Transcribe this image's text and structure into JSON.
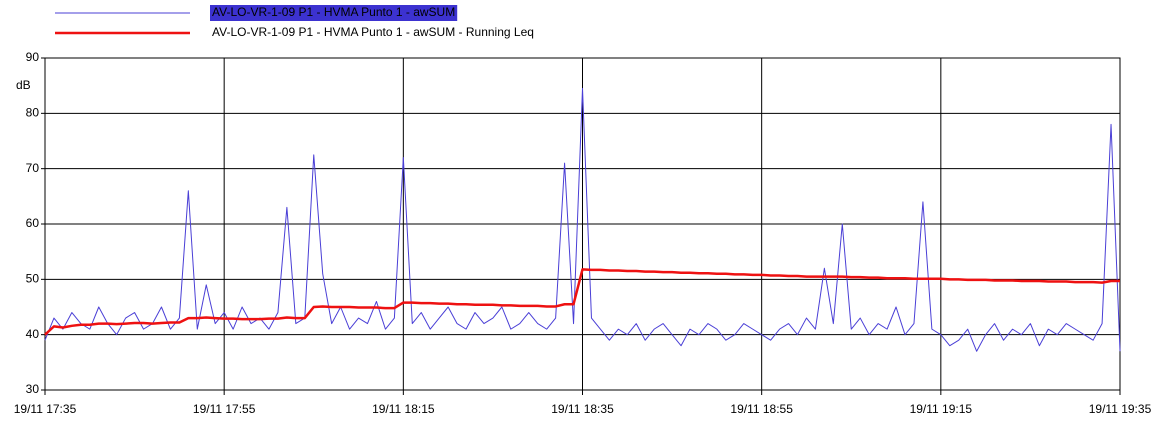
{
  "chart_data": {
    "type": "line",
    "ylabel": "dB",
    "x": [
      "19/11 17:35",
      "19/11 17:36",
      "19/11 17:37",
      "19/11 17:38",
      "19/11 17:39",
      "19/11 17:40",
      "19/11 17:41",
      "19/11 17:42",
      "19/11 17:43",
      "19/11 17:44",
      "19/11 17:45",
      "19/11 17:46",
      "19/11 17:47",
      "19/11 17:48",
      "19/11 17:49",
      "19/11 17:50",
      "19/11 17:51",
      "19/11 17:52",
      "19/11 17:53",
      "19/11 17:54",
      "19/11 17:55",
      "19/11 17:56",
      "19/11 17:57",
      "19/11 17:58",
      "19/11 17:59",
      "19/11 18:00",
      "19/11 18:01",
      "19/11 18:02",
      "19/11 18:03",
      "19/11 18:04",
      "19/11 18:05",
      "19/11 18:06",
      "19/11 18:07",
      "19/11 18:08",
      "19/11 18:09",
      "19/11 18:10",
      "19/11 18:11",
      "19/11 18:12",
      "19/11 18:13",
      "19/11 18:14",
      "19/11 18:15",
      "19/11 18:16",
      "19/11 18:17",
      "19/11 18:18",
      "19/11 18:19",
      "19/11 18:20",
      "19/11 18:21",
      "19/11 18:22",
      "19/11 18:23",
      "19/11 18:24",
      "19/11 18:25",
      "19/11 18:26",
      "19/11 18:27",
      "19/11 18:28",
      "19/11 18:29",
      "19/11 18:30",
      "19/11 18:31",
      "19/11 18:32",
      "19/11 18:33",
      "19/11 18:34",
      "19/11 18:35",
      "19/11 18:36",
      "19/11 18:37",
      "19/11 18:38",
      "19/11 18:39",
      "19/11 18:40",
      "19/11 18:41",
      "19/11 18:42",
      "19/11 18:43",
      "19/11 18:44",
      "19/11 18:45",
      "19/11 18:46",
      "19/11 18:47",
      "19/11 18:48",
      "19/11 18:49",
      "19/11 18:50",
      "19/11 18:51",
      "19/11 18:52",
      "19/11 18:53",
      "19/11 18:54",
      "19/11 18:55",
      "19/11 18:56",
      "19/11 18:57",
      "19/11 18:58",
      "19/11 18:59",
      "19/11 19:00",
      "19/11 19:01",
      "19/11 19:02",
      "19/11 19:03",
      "19/11 19:04",
      "19/11 19:05",
      "19/11 19:06",
      "19/11 19:07",
      "19/11 19:08",
      "19/11 19:09",
      "19/11 19:10",
      "19/11 19:11",
      "19/11 19:12",
      "19/11 19:13",
      "19/11 19:14",
      "19/11 19:15",
      "19/11 19:16",
      "19/11 19:17",
      "19/11 19:18",
      "19/11 19:19",
      "19/11 19:20",
      "19/11 19:21",
      "19/11 19:22",
      "19/11 19:23",
      "19/11 19:24",
      "19/11 19:25",
      "19/11 19:26",
      "19/11 19:27",
      "19/11 19:28",
      "19/11 19:29",
      "19/11 19:30",
      "19/11 19:31",
      "19/11 19:32",
      "19/11 19:33",
      "19/11 19:34",
      "19/11 19:35"
    ],
    "series": [
      {
        "name": "AV-LO-VR-1-09 P1 - HVMA Punto 1 - awSUM",
        "color": "#4a3fd6",
        "selected": true,
        "values": [
          39,
          43,
          41,
          44,
          42,
          41,
          45,
          42,
          40,
          43,
          44,
          41,
          42,
          45,
          41,
          43,
          66,
          41,
          49,
          42,
          44,
          41,
          45,
          42,
          43,
          41,
          44,
          63,
          42,
          43,
          72.5,
          51,
          42,
          45,
          41,
          43,
          42,
          46,
          41,
          43,
          72,
          42,
          44,
          41,
          43,
          45,
          42,
          41,
          44,
          42,
          43,
          45,
          41,
          42,
          44,
          42,
          41,
          43,
          71,
          42,
          84.5,
          43,
          41,
          39,
          41,
          40,
          42,
          39,
          41,
          42,
          40,
          38,
          41,
          40,
          42,
          41,
          39,
          40,
          42,
          41,
          40,
          39,
          41,
          42,
          40,
          43,
          41,
          52,
          42,
          60,
          41,
          43,
          40,
          42,
          41,
          45,
          40,
          42,
          64,
          41,
          40,
          38,
          39,
          41,
          37,
          40,
          42,
          39,
          41,
          40,
          42,
          38,
          41,
          40,
          42,
          41,
          40,
          39,
          42,
          78,
          37
        ]
      },
      {
        "name": "AV-LO-VR-1-09 P1 - HVMA Punto 1 - awSUM - Running Leq",
        "color": "#ee1111",
        "selected": false,
        "values": [
          40,
          41.5,
          41.3,
          41.6,
          41.8,
          41.8,
          42,
          42,
          41.9,
          42,
          42.1,
          42.1,
          42,
          42.1,
          42.2,
          42.2,
          43,
          43,
          43.1,
          43,
          42.9,
          42.9,
          42.8,
          42.8,
          42.8,
          42.9,
          42.9,
          43.1,
          43,
          43,
          45,
          45.1,
          45,
          45,
          45,
          44.9,
          44.9,
          44.9,
          44.8,
          44.8,
          45.8,
          45.8,
          45.7,
          45.7,
          45.6,
          45.6,
          45.5,
          45.5,
          45.4,
          45.4,
          45.4,
          45.3,
          45.3,
          45.2,
          45.2,
          45.2,
          45.1,
          45.1,
          45.5,
          45.5,
          51.8,
          51.7,
          51.7,
          51.6,
          51.6,
          51.5,
          51.5,
          51.4,
          51.4,
          51.3,
          51.3,
          51.2,
          51.2,
          51.1,
          51.1,
          51,
          51,
          50.9,
          50.9,
          50.8,
          50.8,
          50.7,
          50.7,
          50.6,
          50.6,
          50.5,
          50.5,
          50.5,
          50.5,
          50.5,
          50.4,
          50.4,
          50.3,
          50.3,
          50.2,
          50.2,
          50.2,
          50.1,
          50.1,
          50.1,
          50.1,
          50,
          50,
          49.9,
          49.9,
          49.9,
          49.8,
          49.8,
          49.8,
          49.7,
          49.7,
          49.7,
          49.6,
          49.6,
          49.6,
          49.5,
          49.5,
          49.5,
          49.4,
          49.7,
          49.7
        ]
      }
    ],
    "xlim": [
      "19/11 17:35",
      "19/11 19:35"
    ],
    "xticks": [
      "19/11 17:35",
      "19/11 17:55",
      "19/11 18:15",
      "19/11 18:35",
      "19/11 18:55",
      "19/11 19:15",
      "19/11 19:35"
    ],
    "ylim": [
      30,
      90
    ],
    "yticks": [
      30,
      40,
      50,
      60,
      70,
      80,
      90
    ],
    "grid": true,
    "legend": "top"
  }
}
